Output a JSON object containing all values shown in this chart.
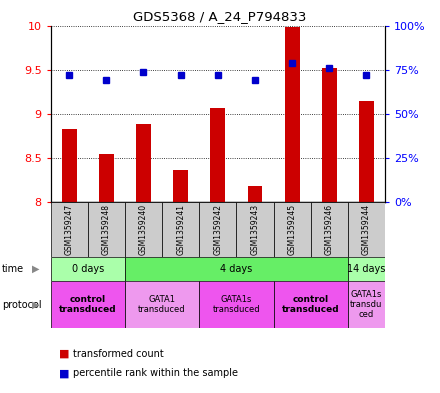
{
  "title": "GDS5368 / A_24_P794833",
  "samples": [
    "GSM1359247",
    "GSM1359248",
    "GSM1359240",
    "GSM1359241",
    "GSM1359242",
    "GSM1359243",
    "GSM1359245",
    "GSM1359246",
    "GSM1359244"
  ],
  "bar_values": [
    8.83,
    8.55,
    8.89,
    8.37,
    9.07,
    8.19,
    9.98,
    9.52,
    9.15
  ],
  "bar_bottom": 8.0,
  "percentile_values": [
    72,
    69,
    74,
    72,
    72,
    69,
    79,
    76,
    72
  ],
  "bar_color": "#cc0000",
  "dot_color": "#0000cc",
  "ylim_left": [
    8.0,
    10.0
  ],
  "ylim_right": [
    0,
    100
  ],
  "yticks_left": [
    8.0,
    8.5,
    9.0,
    9.5,
    10.0
  ],
  "ytick_labels_left": [
    "8",
    "8.5",
    "9",
    "9.5",
    "10"
  ],
  "yticks_right": [
    0,
    25,
    50,
    75,
    100
  ],
  "ytick_labels_right": [
    "0%",
    "25%",
    "50%",
    "75%",
    "100%"
  ],
  "time_groups": [
    {
      "label": "0 days",
      "start": 0,
      "end": 2,
      "color": "#aaffaa"
    },
    {
      "label": "4 days",
      "start": 2,
      "end": 8,
      "color": "#66ee66"
    },
    {
      "label": "14 days",
      "start": 8,
      "end": 9,
      "color": "#aaffaa"
    }
  ],
  "protocol_groups": [
    {
      "label": "control\ntransduced",
      "start": 0,
      "end": 2,
      "color": "#ee55ee",
      "bold": true
    },
    {
      "label": "GATA1\ntransduced",
      "start": 2,
      "end": 4,
      "color": "#ee99ee",
      "bold": false
    },
    {
      "label": "GATA1s\ntransduced",
      "start": 4,
      "end": 6,
      "color": "#ee55ee",
      "bold": false
    },
    {
      "label": "control\ntransduced",
      "start": 6,
      "end": 8,
      "color": "#ee55ee",
      "bold": true
    },
    {
      "label": "GATA1s\ntransdu\nced",
      "start": 8,
      "end": 9,
      "color": "#ee99ee",
      "bold": false
    }
  ],
  "background_color": "#ffffff",
  "sample_box_color": "#cccccc",
  "bar_width": 0.4
}
